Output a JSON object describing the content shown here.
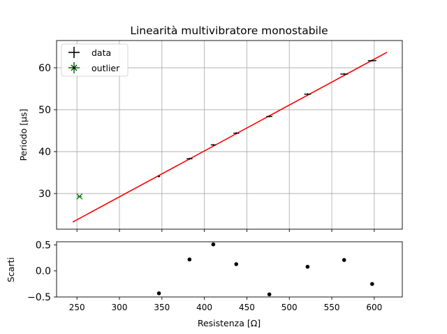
{
  "chart_data": [
    {
      "type": "scatter",
      "title": "Linearità multivibratore monostabile",
      "ylabel": "Periodo [$\\mu s$]",
      "ylabel_display": "Periodo [μs]",
      "xlim": [
        226,
        633
      ],
      "ylim": [
        21.5,
        66.5
      ],
      "xticks": [
        250,
        300,
        350,
        400,
        450,
        500,
        550,
        600
      ],
      "yticks": [
        30,
        40,
        50,
        60
      ],
      "grid": true,
      "legend": {
        "position": "top-left",
        "entries": [
          "data",
          "outlier"
        ]
      },
      "series": [
        {
          "name": "data",
          "marker": "errorbar",
          "color": "#000000",
          "x": [
            346.5,
            382.5,
            410.5,
            437.5,
            476.5,
            521.5,
            564.5,
            597.5
          ],
          "y": [
            34.1,
            38.3,
            41.6,
            44.4,
            48.4,
            53.7,
            58.5,
            61.7
          ],
          "xerr": [
            1.5,
            3.5,
            3.0,
            3.5,
            3.5,
            4.0,
            4.5,
            5.0
          ]
        },
        {
          "name": "outlier",
          "marker": "x",
          "color": "#008000",
          "x": [
            253
          ],
          "y": [
            29.3
          ]
        },
        {
          "name": "",
          "type": "line",
          "color": "#ff0000",
          "x": [
            245,
            615
          ],
          "y": [
            23.2,
            63.7
          ]
        }
      ]
    },
    {
      "type": "scatter",
      "xlabel": "Resistenza [Ω]",
      "ylabel": "Scarti",
      "xlim": [
        226,
        633
      ],
      "ylim": [
        -0.5,
        0.56
      ],
      "xticks": [
        250,
        300,
        350,
        400,
        450,
        500,
        550,
        600
      ],
      "yticks": [
        -0.5,
        0.0,
        0.5
      ],
      "ytick_labels": [
        "−0.5",
        "0.0",
        "0.5"
      ],
      "grid": false,
      "series": [
        {
          "name": "",
          "marker": "dot",
          "color": "#000000",
          "x": [
            346.5,
            382.5,
            410.5,
            437.5,
            476.5,
            521.5,
            564.5,
            597.5
          ],
          "y": [
            -0.43,
            0.22,
            0.51,
            0.13,
            -0.45,
            0.08,
            0.21,
            -0.25
          ]
        }
      ]
    }
  ]
}
